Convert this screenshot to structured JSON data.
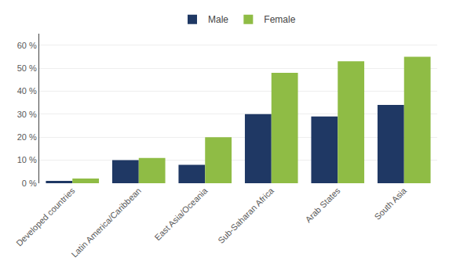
{
  "chart_data": {
    "type": "bar",
    "categories": [
      "Developed countries",
      "Latin America/Caribbean",
      "East Asia/Oceania",
      "Sub-Saharan Africa",
      "Arab States",
      "South Asia"
    ],
    "series": [
      {
        "name": "Male",
        "color": "#1F3864",
        "values": [
          1,
          10,
          8,
          30,
          29,
          34
        ]
      },
      {
        "name": "Female",
        "color": "#8fbc45",
        "values": [
          2,
          11,
          20,
          48,
          53,
          55
        ]
      }
    ],
    "ylim": [
      0,
      65
    ],
    "yticks": [
      {
        "value": 0,
        "label": "0 %"
      },
      {
        "value": 10,
        "label": "10 %"
      },
      {
        "value": 20,
        "label": "20 %"
      },
      {
        "value": 30,
        "label": "30 %"
      },
      {
        "value": 40,
        "label": "40 %"
      },
      {
        "value": 50,
        "label": "50 %"
      },
      {
        "value": 60,
        "label": "60 %"
      }
    ],
    "grid": true,
    "legend": "top"
  }
}
